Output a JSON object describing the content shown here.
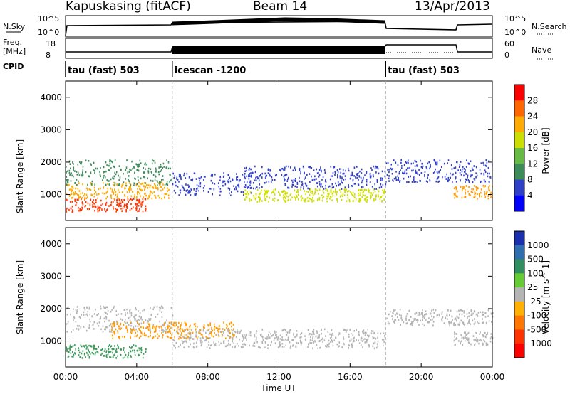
{
  "header": {
    "radar": "Kapuskasing (fitACF)",
    "beam": "Beam 14",
    "date": "13/Apr/2013"
  },
  "params": {
    "nsky_label": "N.Sky",
    "nsky_ticks": [
      "10^5",
      "10^0"
    ],
    "nsearch_label": "N.Search",
    "nsearch_ticks": [
      "10^5",
      "10^0"
    ],
    "freq_label": "Freq.",
    "freq_unit": "[MHz]",
    "freq_ticks": [
      "18",
      "8"
    ],
    "nave_label": "Nave",
    "nave_ticks": [
      "60",
      "0"
    ],
    "cpid_label": "CPID",
    "cpid_segments": [
      {
        "start": 0.0,
        "label": "tau (fast) 503"
      },
      {
        "start": 6.0,
        "label": "icescan -1200"
      },
      {
        "start": 18.0,
        "label": "tau (fast) 503"
      }
    ]
  },
  "chart_data": [
    {
      "type": "heatmap",
      "ylabel": "Slant Range [km]",
      "xlabel": "",
      "xlim": [
        0,
        24
      ],
      "ylim": [
        200,
        4500
      ],
      "x_ticks": [
        0,
        4,
        8,
        12,
        16,
        20,
        24
      ],
      "y_ticks": [
        1000,
        2000,
        3000,
        4000
      ],
      "colorbar": {
        "label": "Power [dB]",
        "ticks": [
          "28",
          "24",
          "20",
          "16",
          "12",
          "8",
          "4"
        ],
        "colors": [
          "#ff0000",
          "#ff6600",
          "#ffaa00",
          "#ccdd00",
          "#66bb44",
          "#3c8c5a",
          "#3040c8",
          "#0000ff"
        ]
      },
      "scatter_regions": [
        {
          "start": 0.0,
          "end": 4.5,
          "rmin": 500,
          "rmax": 900,
          "color": "#ff3300"
        },
        {
          "start": 0.0,
          "end": 5.8,
          "rmin": 900,
          "rmax": 1400,
          "color": "#ffaa00"
        },
        {
          "start": 0.0,
          "end": 6.0,
          "rmin": 1300,
          "rmax": 2100,
          "color": "#3c8c5a"
        },
        {
          "start": 6.0,
          "end": 10.5,
          "rmin": 1000,
          "rmax": 1700,
          "color": "#3040c8"
        },
        {
          "start": 10.0,
          "end": 18.0,
          "rmin": 800,
          "rmax": 1200,
          "color": "#ccdd00"
        },
        {
          "start": 10.0,
          "end": 18.0,
          "rmin": 1200,
          "rmax": 1900,
          "color": "#3040c8"
        },
        {
          "start": 18.0,
          "end": 24.0,
          "rmin": 1400,
          "rmax": 2100,
          "color": "#3040c8"
        },
        {
          "start": 21.8,
          "end": 24.0,
          "rmin": 900,
          "rmax": 1300,
          "color": "#ff9900"
        }
      ]
    },
    {
      "type": "heatmap",
      "ylabel": "Slant Range [km]",
      "xlabel": "Time UT",
      "xlim": [
        0,
        24
      ],
      "ylim": [
        200,
        4500
      ],
      "x_ticks": [
        0,
        4,
        8,
        12,
        16,
        20,
        24
      ],
      "x_tick_labels": [
        "00:00",
        "04:00",
        "08:00",
        "12:00",
        "16:00",
        "20:00",
        "00:00"
      ],
      "y_ticks": [
        1000,
        2000,
        3000,
        4000
      ],
      "colorbar": {
        "label": "Velocity [m s^-1]",
        "ticks": [
          "1000",
          "500",
          "100",
          "25",
          "-25",
          "-100",
          "-500",
          "-1000"
        ],
        "colors": [
          "#1a2fb0",
          "#2f6fb0",
          "#2f8f5f",
          "#66cc33",
          "#b4b4b4",
          "#ffb000",
          "#ff7700",
          "#ff3300",
          "#ff0000"
        ]
      },
      "scatter_regions": [
        {
          "start": 0.0,
          "end": 6.0,
          "rmin": 1300,
          "rmax": 2100,
          "color": "#b4b4b4"
        },
        {
          "start": 0.0,
          "end": 4.5,
          "rmin": 500,
          "rmax": 900,
          "color": "#3c9a5a"
        },
        {
          "start": 2.5,
          "end": 9.5,
          "rmin": 1100,
          "rmax": 1600,
          "color": "#ff9900"
        },
        {
          "start": 6.0,
          "end": 18.0,
          "rmin": 800,
          "rmax": 1400,
          "color": "#b4b4b4"
        },
        {
          "start": 18.0,
          "end": 24.0,
          "rmin": 1500,
          "rmax": 2000,
          "color": "#b4b4b4"
        },
        {
          "start": 21.8,
          "end": 24.0,
          "rmin": 900,
          "rmax": 1300,
          "color": "#b4b4b4"
        }
      ]
    }
  ]
}
